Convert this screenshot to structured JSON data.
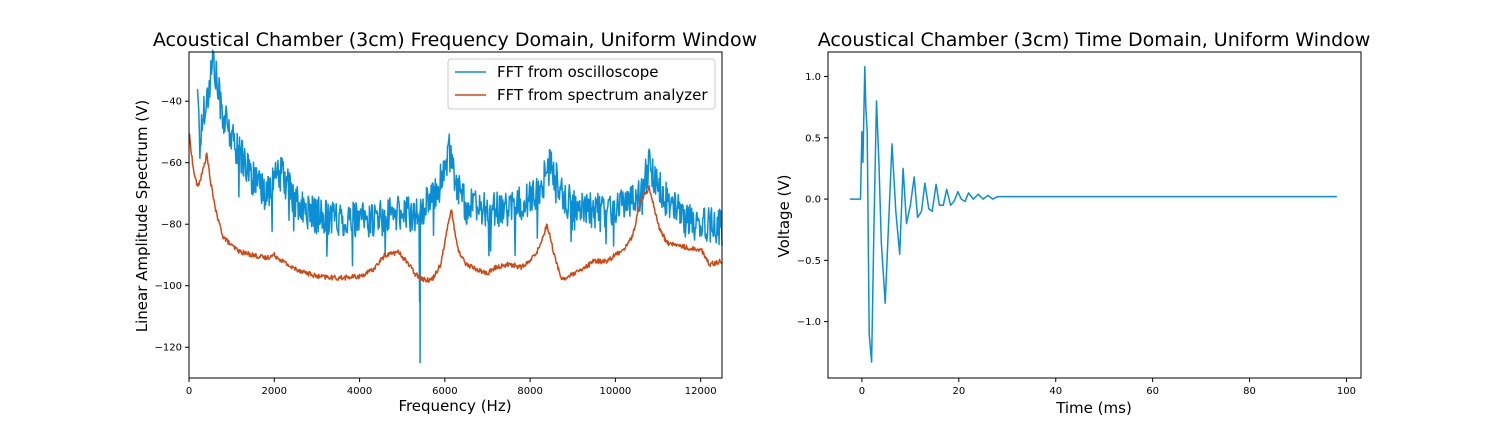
{
  "chart_data": [
    {
      "type": "line",
      "title": "Acoustical Chamber (3cm) Frequency Domain, Uniform Window",
      "xlabel": "Frequency (Hz)",
      "ylabel": "Linear Amplitude Spectrum (V)",
      "xlim": [
        0,
        12500
      ],
      "ylim": [
        -130,
        -24
      ],
      "xticks": [
        "0",
        "2000",
        "4000",
        "6000",
        "8000",
        "10000",
        "12000"
      ],
      "yticks": [
        "-120",
        "-100",
        "-80",
        "-60",
        "-40"
      ],
      "legend_position": "top-right",
      "grid": false,
      "series": [
        {
          "name": "FFT from oscilloscope",
          "color": "#0a8fd4",
          "noise": 6,
          "x": [
            200,
            250,
            350,
            450,
            560,
            650,
            800,
            1000,
            1200,
            1400,
            1600,
            1800,
            2000,
            2200,
            2400,
            2600,
            3000,
            3500,
            4000,
            4500,
            5000,
            5400,
            5410,
            5420,
            5430,
            5450,
            5600,
            5800,
            6000,
            6100,
            6250,
            6500,
            7000,
            7500,
            8000,
            8300,
            8500,
            8700,
            9000,
            9500,
            10000,
            10300,
            10600,
            10800,
            11000,
            11300,
            11600,
            12000,
            12500
          ],
          "y": [
            -33,
            -55,
            -42,
            -38,
            -26,
            -34,
            -45,
            -52,
            -57,
            -62,
            -68,
            -70,
            -65,
            -64,
            -70,
            -75,
            -77,
            -78,
            -79,
            -78,
            -76,
            -77,
            -125,
            -78,
            -76,
            -74,
            -74,
            -70,
            -62,
            -56,
            -66,
            -74,
            -76,
            -75,
            -72,
            -66,
            -60,
            -70,
            -74,
            -76,
            -74,
            -72,
            -70,
            -60,
            -68,
            -74,
            -78,
            -80,
            -81
          ]
        },
        {
          "name": "FFT from spectrum analyzer",
          "color": "#d44711",
          "noise": 0.8,
          "x": [
            0,
            100,
            200,
            300,
            420,
            500,
            650,
            800,
            1000,
            1200,
            1500,
            1800,
            2000,
            2200,
            2400,
            2800,
            3000,
            3500,
            4000,
            4300,
            4600,
            4900,
            5100,
            5300,
            5500,
            5700,
            5900,
            6050,
            6150,
            6300,
            6500,
            6800,
            7000,
            7200,
            7500,
            7800,
            8000,
            8200,
            8400,
            8600,
            8750,
            8900,
            9200,
            9500,
            9800,
            10000,
            10200,
            10400,
            10600,
            10800,
            11000,
            11200,
            11500,
            11800,
            12000,
            12200,
            12500
          ],
          "y": [
            -50,
            -62,
            -68,
            -64,
            -57,
            -66,
            -77,
            -84,
            -87,
            -89,
            -90,
            -91,
            -90,
            -92,
            -94,
            -96,
            -97,
            -97.5,
            -97,
            -95,
            -90,
            -89,
            -92,
            -96,
            -98,
            -98,
            -93,
            -82,
            -75,
            -88,
            -93,
            -95,
            -96,
            -94,
            -93,
            -94,
            -92,
            -88,
            -80,
            -92,
            -98,
            -97,
            -95,
            -92,
            -92,
            -90,
            -88,
            -84,
            -72,
            -68,
            -80,
            -86,
            -87,
            -88,
            -88,
            -93,
            -92
          ]
        }
      ]
    },
    {
      "type": "line",
      "title": "Acoustical Chamber (3cm) Time Domain, Uniform Window",
      "xlabel": "Time (ms)",
      "ylabel": "Voltage (V)",
      "xlim": [
        -7,
        103
      ],
      "ylim": [
        -1.46,
        1.2
      ],
      "xticks": [
        "0",
        "20",
        "40",
        "60",
        "80",
        "100"
      ],
      "yticks": [
        "-1.0",
        "-0.5",
        "0.0",
        "0.5",
        "1.0"
      ],
      "legend_position": "none",
      "grid": false,
      "series": [
        {
          "color": "#0a8fd4",
          "x": [
            -2.5,
            -0.3,
            0,
            0.2,
            0.6,
            0.8,
            1.1,
            1.5,
            2.0,
            2.5,
            3.0,
            3.5,
            4.0,
            4.8,
            5.5,
            6.2,
            7.0,
            7.8,
            8.5,
            9.2,
            10.0,
            10.8,
            11.5,
            12.3,
            13.0,
            13.8,
            14.5,
            15.3,
            16.0,
            16.8,
            17.5,
            18.3,
            19.0,
            19.8,
            20.5,
            21.3,
            22.0,
            23.0,
            24.0,
            25.0,
            26.0,
            27.0,
            28.0,
            30.0,
            35.0,
            40.0,
            50.0,
            60.0,
            70.0,
            80.0,
            90.0,
            98.0
          ],
          "y": [
            0.0,
            0.0,
            0.55,
            0.3,
            1.08,
            0.75,
            0.55,
            -1.1,
            -1.33,
            -0.2,
            0.8,
            0.3,
            -0.35,
            -0.85,
            -0.2,
            0.45,
            -0.1,
            -0.45,
            0.25,
            -0.2,
            -0.05,
            0.18,
            -0.15,
            -0.1,
            0.13,
            -0.08,
            -0.1,
            0.12,
            -0.05,
            -0.05,
            0.08,
            -0.05,
            -0.02,
            0.06,
            0.0,
            -0.02,
            0.05,
            0.0,
            0.04,
            0.0,
            0.03,
            0.0,
            0.02,
            0.02,
            0.02,
            0.02,
            0.02,
            0.02,
            0.02,
            0.02,
            0.02,
            0.02
          ]
        }
      ]
    }
  ]
}
